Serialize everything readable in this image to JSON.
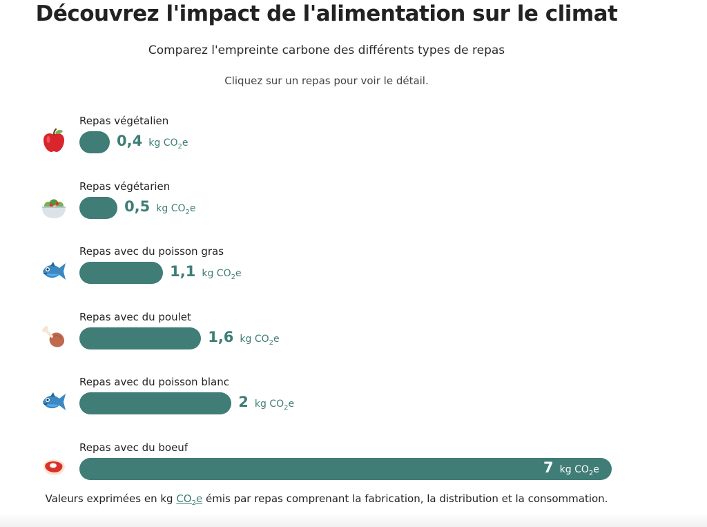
{
  "page": {
    "title": "Découvrez l'impact de l'alimentation sur le climat",
    "subtitle": "Comparez l'empreinte carbone des différents types de repas",
    "hint": "Cliquez sur un repas pour voir le détail.",
    "footnote": {
      "before": "Valeurs exprimées en kg ",
      "link_co": "CO",
      "link_sub": "2",
      "link_e": "e",
      "after": " émis par repas comprenant la fabrication, la distribution et la consommation."
    }
  },
  "unit": {
    "prefix": "kg CO",
    "sub": "2",
    "suffix": "e"
  },
  "chart_data": {
    "type": "bar",
    "orientation": "horizontal",
    "categories": [
      "Repas végétalien",
      "Repas végétarien",
      "Repas avec du poisson gras",
      "Repas avec du poulet",
      "Repas avec du poisson blanc",
      "Repas avec du boeuf"
    ],
    "values": [
      0.4,
      0.5,
      1.1,
      1.6,
      2,
      7
    ],
    "labels": [
      "0,4",
      "0,5",
      "1,1",
      "1,6",
      "2",
      "7"
    ],
    "icons": [
      "apple-icon",
      "salad-icon",
      "fish-icon",
      "chicken-leg-icon",
      "fish-icon",
      "steak-icon"
    ],
    "unit": "kg CO2e",
    "xlim": [
      0,
      7
    ],
    "bar_color": "#3f7d76"
  }
}
